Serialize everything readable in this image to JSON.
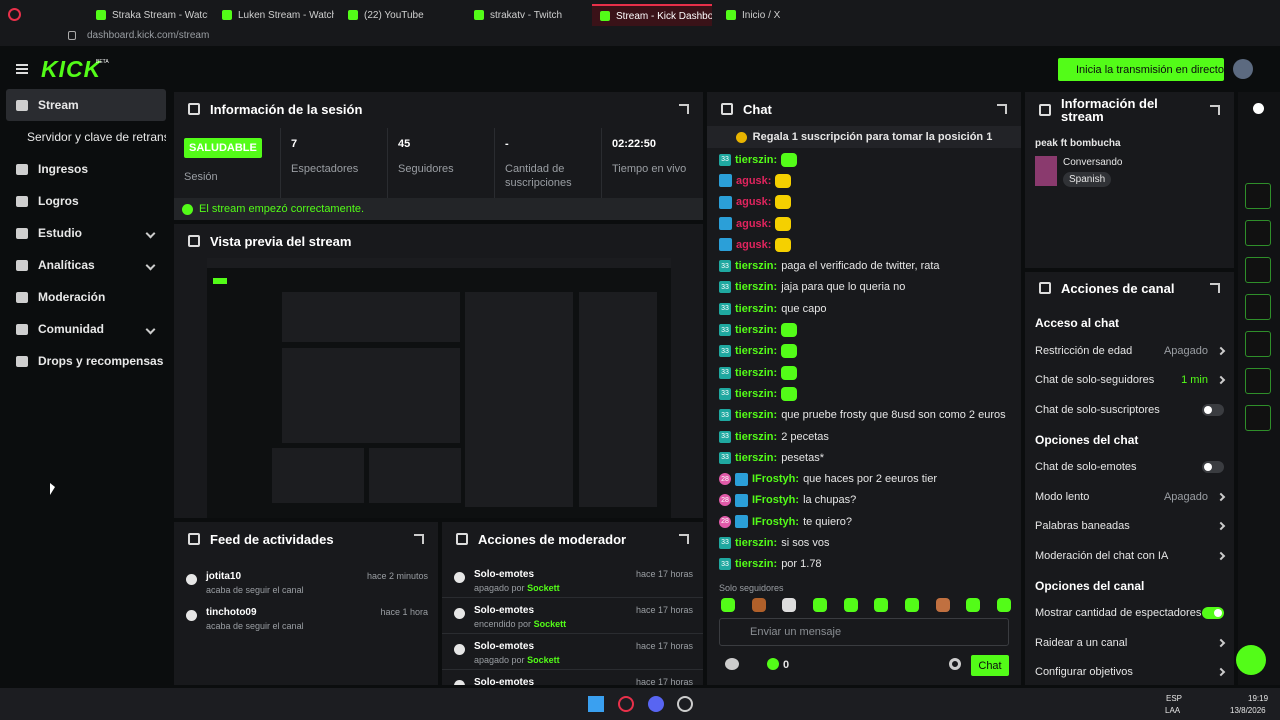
{
  "browser": {
    "tabs": [
      "Straka Stream - Watch",
      "Luken Stream - Watch",
      "(22) YouTube",
      "strakatv - Twitch",
      "Stream - Kick Dashbo",
      "Inicio / X"
    ],
    "active_tab": 4,
    "url": "dashboard.kick.com/stream"
  },
  "header": {
    "logo": "KICK",
    "beta": "BETA",
    "go_live": "Inicia la transmisión en directo"
  },
  "sidebar": [
    {
      "label": "Stream",
      "active": true
    },
    {
      "label": "Servidor y clave de retransmisión",
      "sub": true
    },
    {
      "label": "Ingresos"
    },
    {
      "label": "Logros"
    },
    {
      "label": "Estudio",
      "expandable": true
    },
    {
      "label": "Analíticas",
      "expandable": true
    },
    {
      "label": "Moderación"
    },
    {
      "label": "Comunidad",
      "expandable": true
    },
    {
      "label": "Drops y recompensas"
    }
  ],
  "session": {
    "title": "Información de la sesión",
    "stats": [
      {
        "value": "SALUDABLE",
        "label": "Sesión",
        "pill": true
      },
      {
        "value": "7",
        "label": "Espectadores"
      },
      {
        "value": "45",
        "label": "Seguidores"
      },
      {
        "value": "-",
        "label": "Cantidad de suscripciones"
      },
      {
        "value": "02:22:50",
        "label": "Tiempo en vivo"
      }
    ],
    "status": "El stream empezó correctamente."
  },
  "preview": {
    "title": "Vista previa del stream"
  },
  "feed": {
    "title": "Feed de actividades",
    "items": [
      {
        "user": "jotita10",
        "action": "acaba de seguir el canal",
        "time": "hace 2 minutos"
      },
      {
        "user": "tinchoto09",
        "action": "acaba de seguir el canal",
        "time": "hace 1 hora"
      }
    ]
  },
  "moderator": {
    "title": "Acciones de moderador",
    "items": [
      {
        "title": "Solo-emotes",
        "action": "apagado por",
        "by": "Sockett",
        "time": "hace 17 horas"
      },
      {
        "title": "Solo-emotes",
        "action": "encendido por",
        "by": "Sockett",
        "time": "hace 17 horas"
      },
      {
        "title": "Solo-emotes",
        "action": "apagado por",
        "by": "Sockett",
        "time": "hace 17 horas"
      },
      {
        "title": "Solo-emotes",
        "time": "hace 17 horas"
      }
    ]
  },
  "chat": {
    "title": "Chat",
    "pinned": "Regala 1 suscripción para tomar la posición 1",
    "messages": [
      {
        "badge": "33",
        "user": "tierszin:",
        "color": "#53fc18"
      },
      {
        "user": "agusk:",
        "color": "#e0245e"
      },
      {
        "user": "agusk:",
        "color": "#e0245e"
      },
      {
        "user": "agusk:",
        "color": "#e0245e"
      },
      {
        "user": "agusk:",
        "color": "#e0245e"
      },
      {
        "badge": "33",
        "user": "tierszin:",
        "color": "#53fc18",
        "text": "paga el verificado de twitter, rata"
      },
      {
        "badge": "33",
        "user": "tierszin:",
        "color": "#53fc18",
        "text": "jaja para que lo queria no"
      },
      {
        "badge": "33",
        "user": "tierszin:",
        "color": "#53fc18",
        "text": "que capo"
      },
      {
        "badge": "33",
        "user": "tierszin:",
        "color": "#53fc18"
      },
      {
        "badge": "33",
        "user": "tierszin:",
        "color": "#53fc18"
      },
      {
        "badge": "33",
        "user": "tierszin:",
        "color": "#53fc18"
      },
      {
        "badge": "33",
        "user": "tierszin:",
        "color": "#53fc18"
      },
      {
        "badge": "33",
        "user": "tierszin:",
        "color": "#53fc18",
        "text": "que pruebe frosty que 8usd son como 2 euros"
      },
      {
        "badge": "33",
        "user": "tierszin:",
        "color": "#53fc18",
        "text": "2 pecetas"
      },
      {
        "badge": "33",
        "user": "tierszin:",
        "color": "#53fc18",
        "text": "pesetas*"
      },
      {
        "badge": "28",
        "user": "IFrostyh:",
        "color": "#53fc18",
        "text": "que haces por 2 eeuros tier"
      },
      {
        "badge": "28",
        "user": "IFrostyh:",
        "color": "#53fc18",
        "text": "la chupas?"
      },
      {
        "badge": "28",
        "user": "IFrostyh:",
        "color": "#53fc18",
        "text": "te quiero?"
      },
      {
        "badge": "33",
        "user": "tierszin:",
        "color": "#53fc18",
        "text": "si sos vos"
      },
      {
        "badge": "33",
        "user": "tierszin:",
        "color": "#53fc18",
        "text": "por 1.78"
      }
    ],
    "mode": "Solo seguidores",
    "placeholder": "Enviar un mensaje",
    "points": "0",
    "send": "Chat"
  },
  "stream_info": {
    "title": "Información del stream",
    "stream_title": "peak ft bombucha",
    "category": "Conversando",
    "language": "Spanish"
  },
  "channel_actions": {
    "title": "Acciones de canal",
    "sections": [
      {
        "title": "Acceso al chat",
        "items": [
          {
            "label": "Restricción de edad",
            "value": "Apagado"
          },
          {
            "label": "Chat de solo-seguidores",
            "value": "1 min",
            "accent": true
          },
          {
            "label": "Chat de solo-suscriptores",
            "toggle": false
          }
        ]
      },
      {
        "title": "Opciones del chat",
        "items": [
          {
            "label": "Chat de solo-emotes",
            "toggle": false
          },
          {
            "label": "Modo lento",
            "value": "Apagado"
          },
          {
            "label": "Palabras baneadas"
          },
          {
            "label": "Moderación del chat con IA",
            "external": true
          }
        ]
      },
      {
        "title": "Opciones del canal",
        "items": [
          {
            "label": "Mostrar cantidad de espectadores",
            "toggle": true
          },
          {
            "label": "Raidear a un canal"
          },
          {
            "label": "Configurar objetivos"
          }
        ]
      }
    ]
  },
  "taskbar": {
    "lang": "ESP",
    "region": "LAA",
    "time": "19:19",
    "date": "13/8/2026"
  }
}
